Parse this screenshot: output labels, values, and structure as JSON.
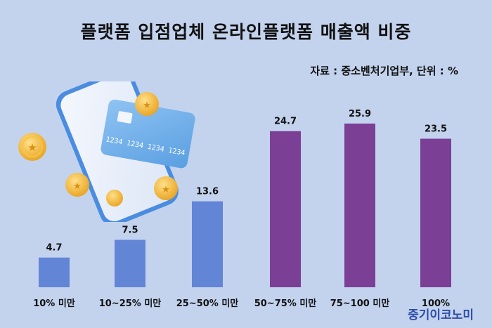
{
  "title": "플랫폼 입점업체 온라인플랫폼 매출액 비중",
  "source_note": "자료 : 중소벤처기업부, 단위 : %",
  "brand": "중기이코노미",
  "illustration": {
    "card_number": "1234 1234 1234 1234",
    "icons": [
      "smartphone-icon",
      "credit-card-icon",
      "coin-icon"
    ]
  },
  "colors": {
    "background": "#c3d3ee",
    "bar_blue": "#6385d6",
    "bar_purple": "#7b3f96"
  },
  "chart_data": {
    "type": "bar",
    "categories": [
      "10% 미만",
      "10~25% 미만",
      "25~50% 미만",
      "50~75% 미만",
      "75~100 미만",
      "100%"
    ],
    "values": [
      4.7,
      7.5,
      13.6,
      24.7,
      25.9,
      23.5
    ],
    "value_labels": [
      "4.7",
      "7.5",
      "13.6",
      "24.7",
      "25.9",
      "23.5"
    ],
    "bar_colors": [
      "#6385d6",
      "#6385d6",
      "#6385d6",
      "#7b3f96",
      "#7b3f96",
      "#7b3f96"
    ],
    "title": "플랫폼 입점업체 온라인플랫폼 매출액 비중",
    "unit": "%",
    "ylim": [
      0,
      30
    ],
    "grid": false,
    "legend": "none"
  }
}
